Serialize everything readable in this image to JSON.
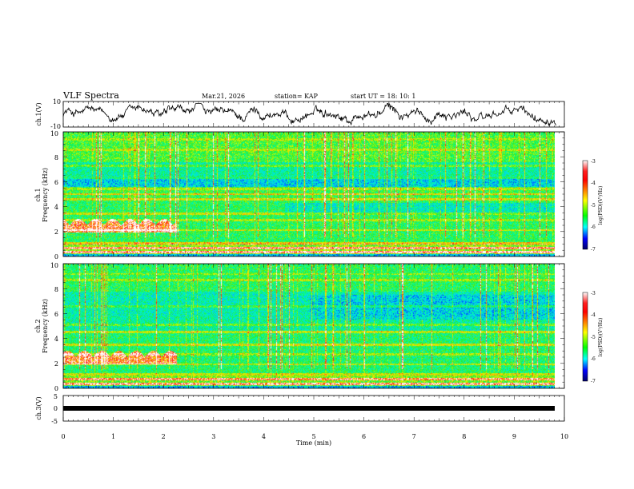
{
  "header": {
    "title": "VLF Spectra",
    "date": "Mar.21, 2026",
    "station": "station= KAP",
    "start": "start  UT =  18: 10: 1"
  },
  "chart_data": {
    "type": "heatmap",
    "xlabel": "Time (min)",
    "xlim": [
      0,
      10
    ],
    "x_ticks": [
      "0",
      "1",
      "2",
      "3",
      "4",
      "5",
      "6",
      "7",
      "8",
      "9",
      "10"
    ],
    "panels": [
      {
        "id": "ch1-waveform",
        "type": "line",
        "ylabel": "ch.1(V)",
        "ylim": [
          -10,
          10
        ],
        "y_ticks": [
          "10",
          "-10"
        ],
        "series": [
          {
            "name": "ch.1",
            "color": "#000000"
          }
        ]
      },
      {
        "id": "ch1-spectrogram",
        "type": "heatmap",
        "ylabel_top": "ch.1",
        "ylabel": "Frequency (kHz)",
        "ylim": [
          0,
          10
        ],
        "y_ticks": [
          "0",
          "2",
          "4",
          "6",
          "8",
          "10"
        ],
        "colorbar": {
          "label": "log(PSD)(V²/Hz)",
          "range": [
            -7,
            -3
          ],
          "ticks": [
            "-3",
            "-4",
            "-5",
            "-6",
            "-7"
          ]
        }
      },
      {
        "id": "ch2-spectrogram",
        "type": "heatmap",
        "ylabel_top": "ch.2",
        "ylabel": "Frequency (kHz)",
        "ylim": [
          0,
          10
        ],
        "y_ticks": [
          "0",
          "2",
          "4",
          "6",
          "8",
          "10"
        ],
        "colorbar": {
          "label": "log(PSD)(V²/Hz)",
          "range": [
            -7,
            -3
          ],
          "ticks": [
            "-3",
            "-4",
            "-5",
            "-6",
            "-7"
          ]
        }
      },
      {
        "id": "ch3-waveform",
        "type": "line",
        "ylabel": "ch.3(V)",
        "ylim": [
          -5,
          5
        ],
        "y_ticks": [
          "5",
          "0",
          "-5"
        ],
        "series": [
          {
            "name": "ch.3",
            "color": "#000000"
          }
        ]
      }
    ],
    "data_end_min": 9.85
  }
}
